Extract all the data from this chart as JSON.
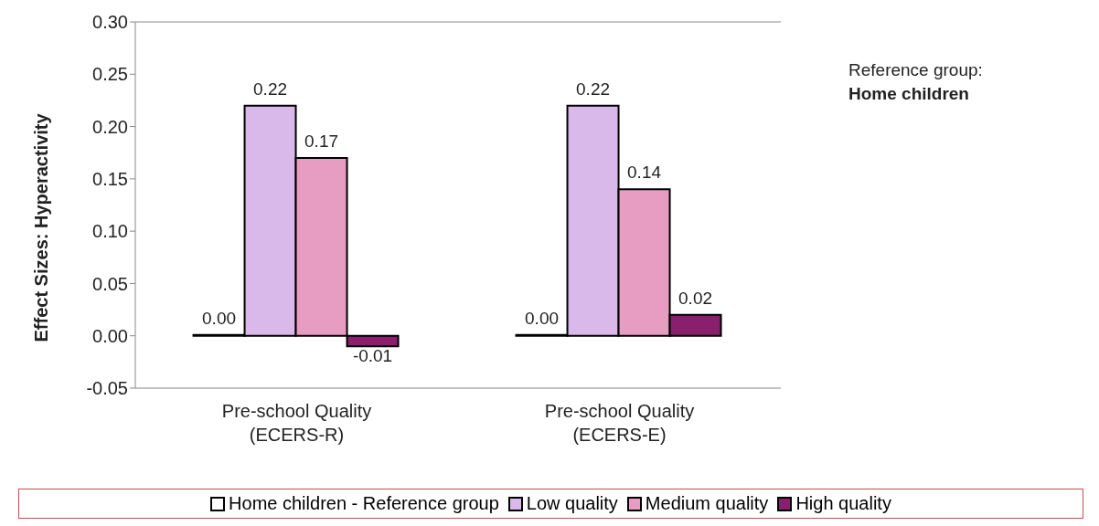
{
  "chart_data": {
    "type": "bar",
    "ylabel": "Effect Sizes: Hyperactivity",
    "categories": [
      "Pre-school Quality\n(ECERS-R)",
      "Pre-school Quality\n(ECERS-E)"
    ],
    "series": [
      {
        "name": "Home children - Reference group",
        "color": "#ffffff",
        "values": [
          0.0,
          0.0
        ],
        "value_labels": [
          "0.00",
          "0.00"
        ]
      },
      {
        "name": "Low quality",
        "color": "#d9b8ea",
        "values": [
          0.22,
          0.22
        ],
        "value_labels": [
          "0.22",
          "0.22"
        ]
      },
      {
        "name": "Medium quality",
        "color": "#e79cc2",
        "values": [
          0.17,
          0.14
        ],
        "value_labels": [
          "0.17",
          "0.14"
        ]
      },
      {
        "name": "High quality",
        "color": "#8a1f6e",
        "values": [
          -0.01,
          0.02
        ],
        "value_labels": [
          "-0.01",
          "0.02"
        ]
      }
    ],
    "ylim": [
      -0.05,
      0.3
    ],
    "yticks": [
      {
        "value": -0.05,
        "label": "-0.05"
      },
      {
        "value": 0,
        "label": "0.00"
      },
      {
        "value": 0.05,
        "label": "0.05"
      },
      {
        "value": 0.1,
        "label": "0.10"
      },
      {
        "value": 0.15,
        "label": "0.15"
      },
      {
        "value": 0.2,
        "label": "0.20"
      },
      {
        "value": 0.25,
        "label": "0.25"
      },
      {
        "value": 0.3,
        "label": "0.30"
      }
    ],
    "grid": false,
    "legend": "bottom",
    "annotations": [
      "Reference group:",
      "Home children"
    ]
  }
}
